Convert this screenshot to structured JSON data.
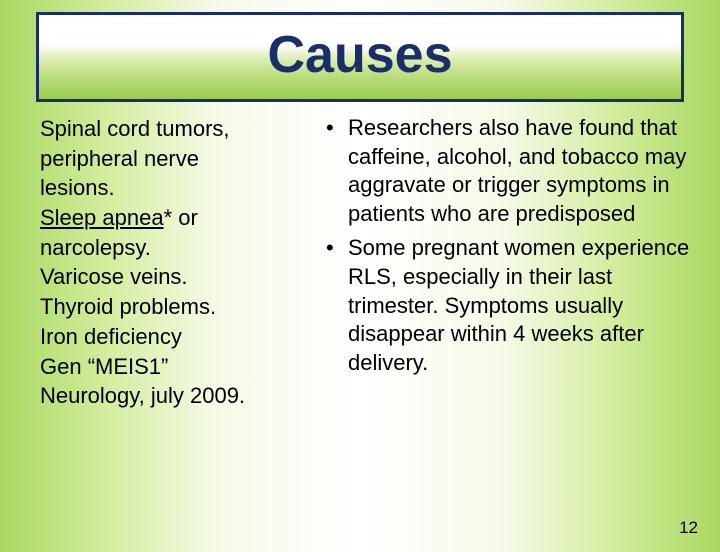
{
  "title": "Causes",
  "left": {
    "line1": "Spinal cord tumors,",
    "line2": "peripheral nerve",
    "line3": "lesions.",
    "sleep_apnea": "Sleep apnea",
    "asterisk_or": "* or",
    "line5": "narcolepsy.",
    "line6": "Varicose veins.",
    "line7": "Thyroid problems.",
    "line8": " Iron deficiency",
    "line9": "Gen “MEIS1”",
    "line10": "Neurology, july 2009."
  },
  "right": {
    "bullet1": "Researchers also have found that caffeine, alcohol, and tobacco may aggravate or trigger symptoms in patients who are predisposed",
    "bullet2": "Some pregnant women experience RLS, especially in their last trimester. Symptoms usually disappear within 4 weeks after delivery."
  },
  "page_number": "12"
}
